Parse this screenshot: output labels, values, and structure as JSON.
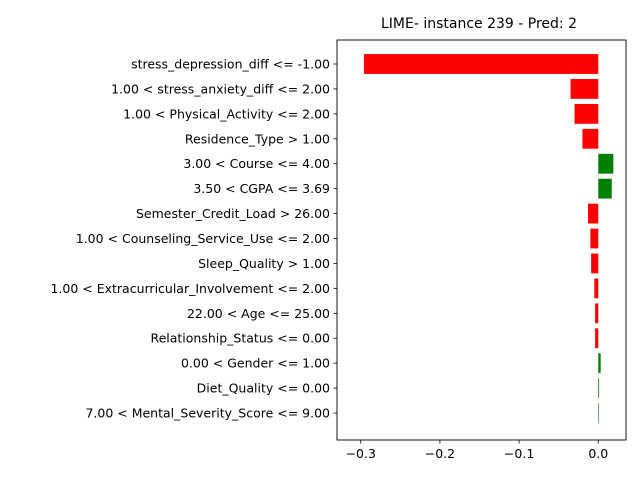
{
  "chart_data": {
    "type": "bar",
    "orientation": "horizontal",
    "title": "LIME- instance 239 - Pred: 2",
    "xlabel": "",
    "ylabel": "",
    "xlim": [
      -0.33,
      0.035
    ],
    "xticks": [
      -0.3,
      -0.2,
      -0.1,
      0.0
    ],
    "xtick_labels": [
      "−0.3",
      "−0.2",
      "−0.1",
      "0.0"
    ],
    "grid": false,
    "positive_color": "#008000",
    "negative_color": "#ff0000",
    "categories": [
      "stress_depression_diff <= -1.00",
      "1.00 < stress_anxiety_diff <= 2.00",
      "1.00 < Physical_Activity <= 2.00",
      "Residence_Type > 1.00",
      "3.00 < Course <= 4.00",
      "3.50 < CGPA <= 3.69",
      "Semester_Credit_Load > 26.00",
      "1.00 < Counseling_Service_Use <= 2.00",
      "Sleep_Quality > 1.00",
      "1.00 < Extracurricular_Involvement <= 2.00",
      "22.00 < Age <= 25.00",
      "Relationship_Status <= 0.00",
      "0.00 < Gender <= 1.00",
      "Diet_Quality <= 0.00",
      "7.00 < Mental_Severity_Score <= 9.00"
    ],
    "values": [
      -0.296,
      -0.035,
      -0.03,
      -0.02,
      0.019,
      0.017,
      -0.013,
      -0.01,
      -0.009,
      -0.005,
      -0.004,
      -0.004,
      0.003,
      0.001,
      0.0
    ]
  }
}
